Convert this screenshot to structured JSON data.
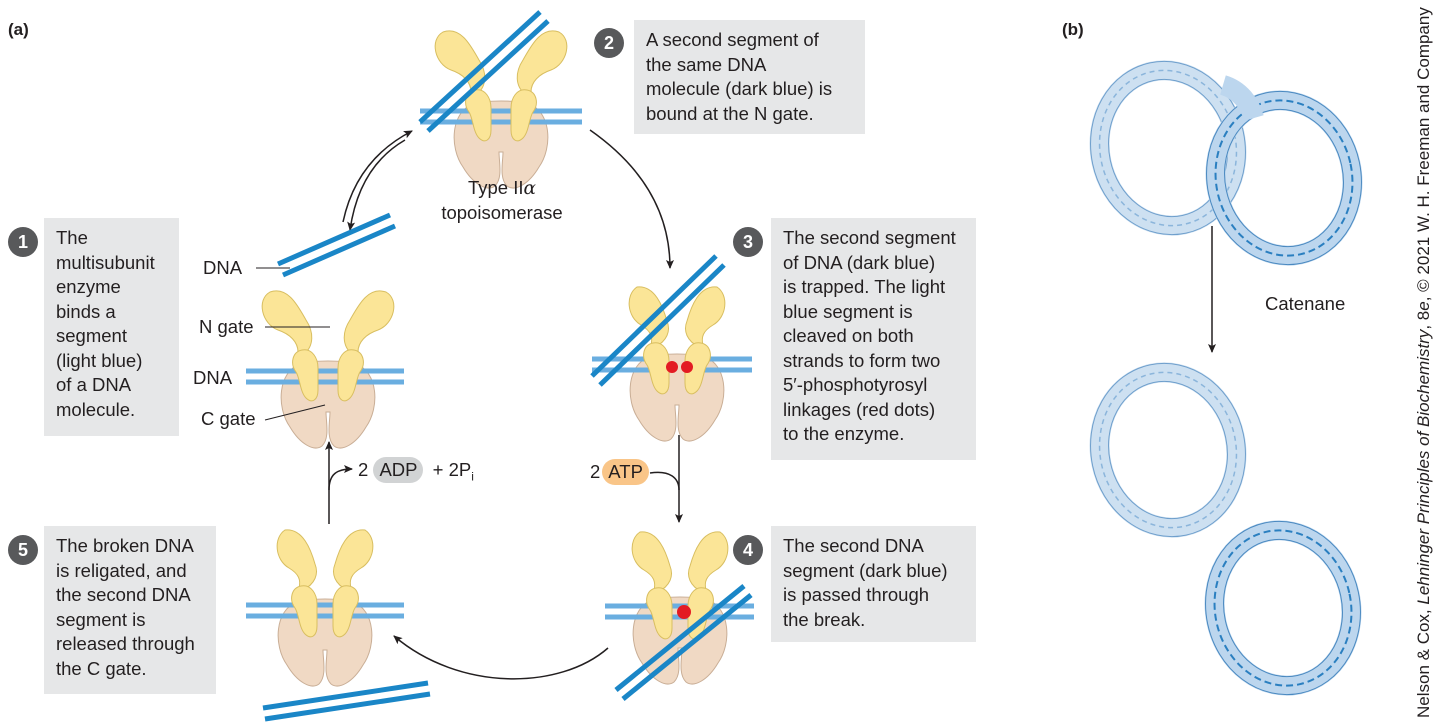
{
  "panel_a": "(a)",
  "panel_b": "(b)",
  "steps": [
    {
      "num": "1",
      "text": "The\nmultisubunit\nenzyme\nbinds a\nsegment\n(light blue)\nof a DNA\nmolecule."
    },
    {
      "num": "2",
      "text": "A second segment of\nthe same DNA\nmolecule (dark blue) is\nbound at the N gate."
    },
    {
      "num": "3",
      "text": "The second segment\nof DNA (dark blue)\nis trapped. The light\nblue segment is\ncleaved on both\nstrands to form two\n5′-phosphotyrosyl\nlinkages (red dots)\nto the enzyme."
    },
    {
      "num": "4",
      "text": "The second DNA\nsegment (dark blue)\nis passed through\nthe break."
    },
    {
      "num": "5",
      "text": "The broken DNA\nis religated, and\nthe second DNA\nsegment is\nreleased through\nthe C gate."
    }
  ],
  "labels": {
    "dna_top": "DNA",
    "n_gate": "N gate",
    "dna_mid": "DNA",
    "c_gate": "C gate",
    "enzyme_line1": "Type II",
    "enzyme_alpha": "α",
    "enzyme_line2": "topoisomerase",
    "adp_prefix": "2",
    "adp": "ADP",
    "pi": "+ 2P",
    "pi_sub": "i",
    "atp_prefix": "2",
    "atp": "ATP",
    "catenane": "Catenane"
  },
  "credit": {
    "pre": "Nelson & Cox, ",
    "title": "Lehninger Principles of Biochemistry",
    "mid": ", 8",
    "ed": "e",
    "post": ", © 2021 W. H. Freeman and Company"
  },
  "colors": {
    "light_dna": "#6aaee0",
    "dark_dna": "#1a86c7",
    "n_gate": "#fbe597",
    "c_gate": "#f0d9c4",
    "red_dot": "#e31b23",
    "box_bg": "#e6e7e8",
    "atp": "#f9c588",
    "adp": "#d1d3d4"
  }
}
